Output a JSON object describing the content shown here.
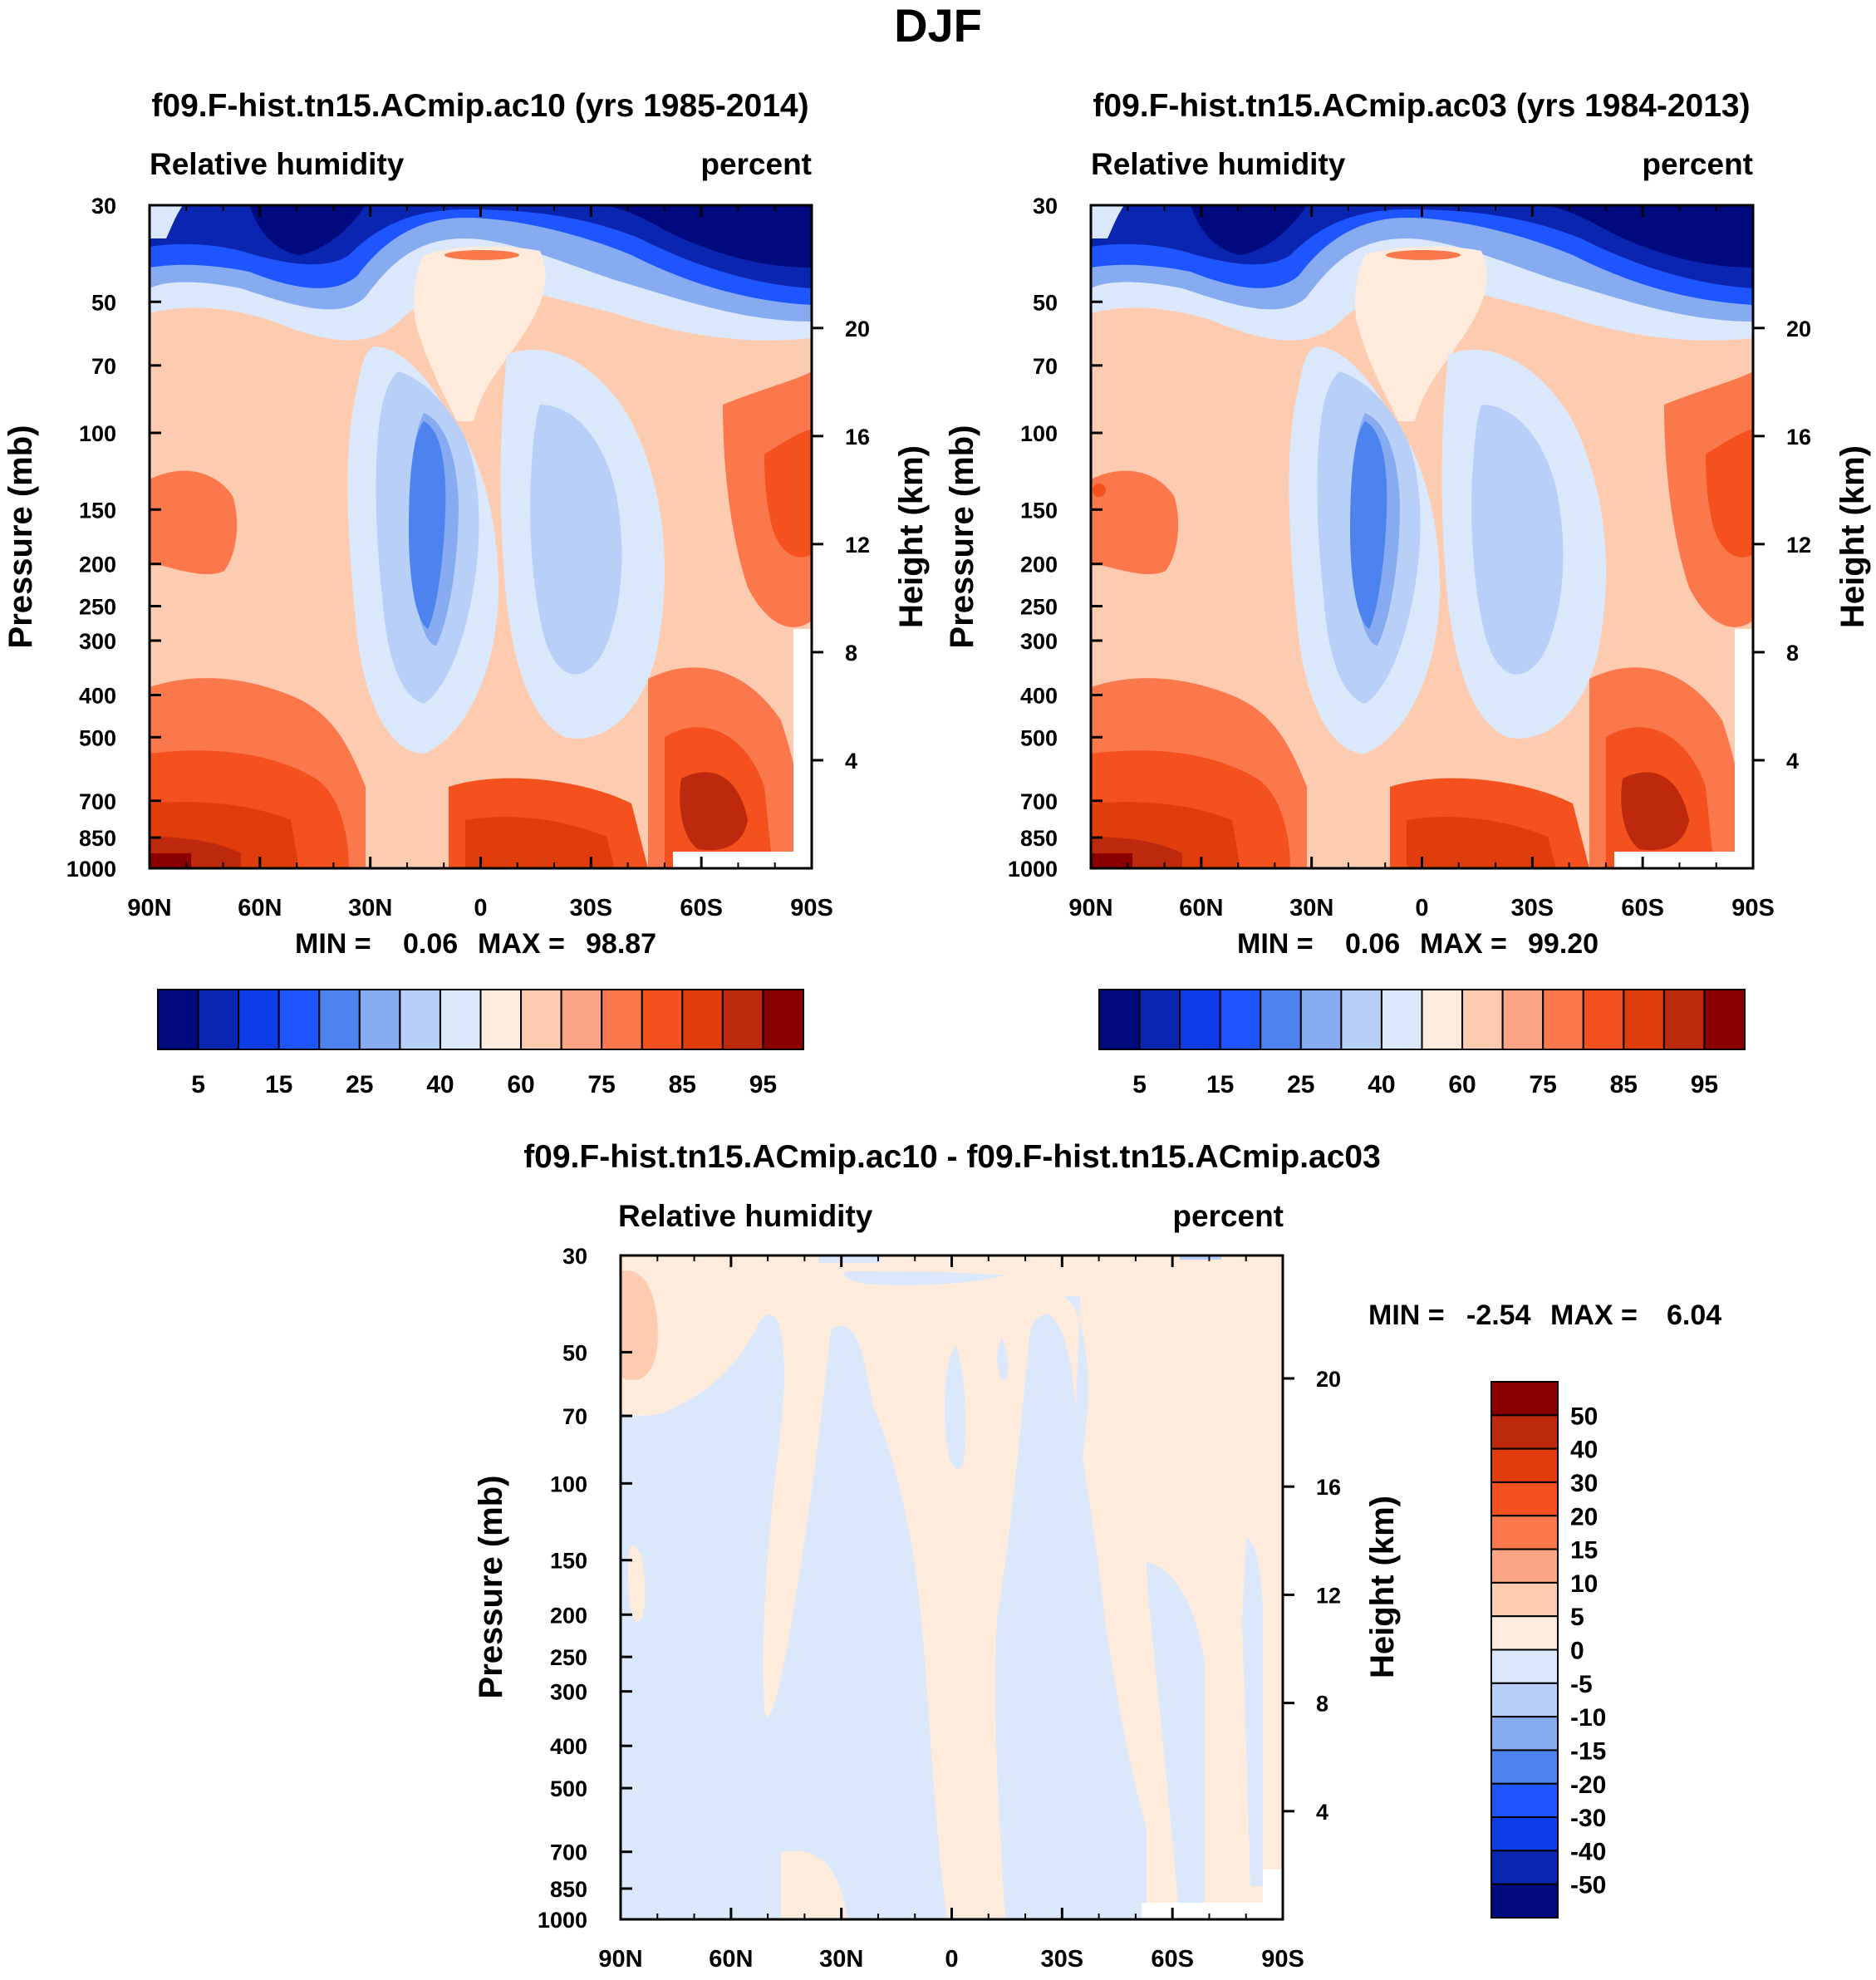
{
  "page_title": "DJF",
  "chart_data": [
    {
      "type": "heatmap",
      "id": "panel-a",
      "title": "f09.F-hist.tn15.ACmip.ac10 (yrs 1985-2014)",
      "left_label": "Relative humidity",
      "right_label": "percent",
      "xlabel": "",
      "ylabel": "Pressure (mb)",
      "ylabel_right": "Height (km)",
      "x_ticks": [
        "90N",
        "60N",
        "30N",
        "0",
        "30S",
        "60S",
        "90S"
      ],
      "y_ticks": [
        "30",
        "50",
        "70",
        "100",
        "150",
        "200",
        "250",
        "300",
        "400",
        "500",
        "700",
        "850",
        "1000"
      ],
      "height_ticks": [
        "20",
        "16",
        "12",
        "8",
        "4"
      ],
      "min_label": "MIN =",
      "min_value": "0.06",
      "max_label": "MAX =",
      "max_value": "98.87",
      "zmin": 0.06,
      "zmax": 98.87,
      "levels": [
        "5",
        "15",
        "25",
        "40",
        "60",
        "75",
        "85",
        "95"
      ],
      "colors": [
        "#000a7f",
        "#0a25b0",
        "#0d3de8",
        "#1f55ff",
        "#4d83ef",
        "#86abf0",
        "#b8cff7",
        "#dbe8fb",
        "#feebdc",
        "#fdcbb0",
        "#fca585",
        "#fa784b",
        "#f4511f",
        "#e13c0c",
        "#bd290c",
        "#8a0000"
      ]
    },
    {
      "type": "heatmap",
      "id": "panel-b",
      "title": "f09.F-hist.tn15.ACmip.ac03 (yrs 1984-2013)",
      "left_label": "Relative humidity",
      "right_label": "percent",
      "xlabel": "",
      "ylabel": "Pressure (mb)",
      "ylabel_right": "Height (km)",
      "x_ticks": [
        "90N",
        "60N",
        "30N",
        "0",
        "30S",
        "60S",
        "90S"
      ],
      "y_ticks": [
        "30",
        "50",
        "70",
        "100",
        "150",
        "200",
        "250",
        "300",
        "400",
        "500",
        "700",
        "850",
        "1000"
      ],
      "height_ticks": [
        "20",
        "16",
        "12",
        "8",
        "4"
      ],
      "min_label": "MIN =",
      "min_value": "0.06",
      "max_label": "MAX =",
      "max_value": "99.20",
      "zmin": 0.06,
      "zmax": 99.2,
      "levels": [
        "5",
        "15",
        "25",
        "40",
        "60",
        "75",
        "85",
        "95"
      ],
      "colors": [
        "#000a7f",
        "#0a25b0",
        "#0d3de8",
        "#1f55ff",
        "#4d83ef",
        "#86abf0",
        "#b8cff7",
        "#dbe8fb",
        "#feebdc",
        "#fdcbb0",
        "#fca585",
        "#fa784b",
        "#f4511f",
        "#e13c0c",
        "#bd290c",
        "#8a0000"
      ]
    },
    {
      "type": "heatmap",
      "id": "panel-diff",
      "title": "f09.F-hist.tn15.ACmip.ac10 - f09.F-hist.tn15.ACmip.ac03",
      "left_label": "Relative humidity",
      "right_label": "percent",
      "xlabel": "",
      "ylabel": "Pressure (mb)",
      "ylabel_right": "Height (km)",
      "x_ticks": [
        "90N",
        "60N",
        "30N",
        "0",
        "30S",
        "60S",
        "90S"
      ],
      "y_ticks": [
        "30",
        "50",
        "70",
        "100",
        "150",
        "200",
        "250",
        "300",
        "400",
        "500",
        "700",
        "850",
        "1000"
      ],
      "height_ticks": [
        "20",
        "16",
        "12",
        "8",
        "4"
      ],
      "min_label": "MIN =",
      "min_value": "-2.54",
      "max_label": "MAX =",
      "max_value": "6.04",
      "zmin": -2.54,
      "zmax": 6.04,
      "levels": [
        "50",
        "40",
        "30",
        "20",
        "15",
        "10",
        "5",
        "0",
        "-5",
        "-10",
        "-15",
        "-20",
        "-30",
        "-40",
        "-50"
      ],
      "colors": [
        "#8a0000",
        "#bd290c",
        "#e13c0c",
        "#f4511f",
        "#fa784b",
        "#fca585",
        "#fdcbb0",
        "#feebdc",
        "#dbe8fb",
        "#b8cff7",
        "#86abf0",
        "#4d83ef",
        "#1f55ff",
        "#0d3de8",
        "#0a25b0",
        "#000a7f"
      ]
    }
  ]
}
